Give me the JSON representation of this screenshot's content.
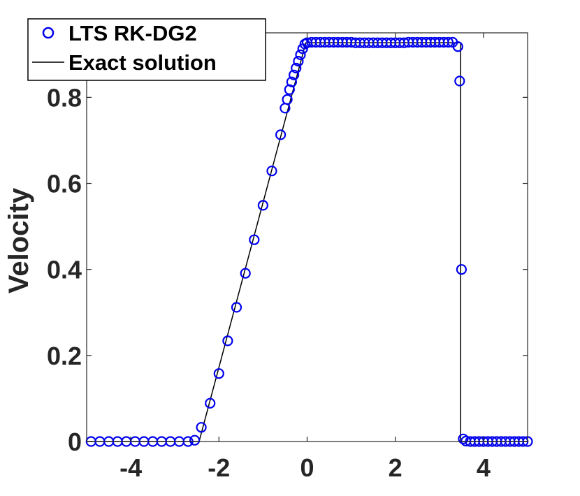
{
  "chart_data": {
    "type": "scatter",
    "title": "",
    "xlabel": "",
    "ylabel": "Velocity",
    "xlim": [
      -5,
      5
    ],
    "ylim": [
      0,
      0.95
    ],
    "x_ticks": [
      -4,
      -2,
      0,
      2,
      4
    ],
    "x_tick_labels": [
      "-4",
      "-2",
      "0",
      "2",
      "4"
    ],
    "y_ticks": [
      0,
      0.2,
      0.4,
      0.6,
      0.8
    ],
    "y_tick_labels": [
      "0",
      "0.2",
      "0.4",
      "0.6",
      "0.8"
    ],
    "grid": false,
    "legend_position": "top-left",
    "series": [
      {
        "name": "LTS RK-DG2",
        "style": "markers",
        "marker": "circle",
        "color": "#0000ee",
        "points": [
          [
            -4.9,
            0
          ],
          [
            -4.7,
            0
          ],
          [
            -4.5,
            0
          ],
          [
            -4.3,
            0
          ],
          [
            -4.1,
            0
          ],
          [
            -3.9,
            0
          ],
          [
            -3.7,
            0
          ],
          [
            -3.5,
            0
          ],
          [
            -3.3,
            0
          ],
          [
            -3.1,
            0
          ],
          [
            -2.9,
            0
          ],
          [
            -2.7,
            0
          ],
          [
            -2.55,
            0.003
          ],
          [
            -2.4,
            0.033
          ],
          [
            -2.2,
            0.089
          ],
          [
            -2.0,
            0.158
          ],
          [
            -1.8,
            0.234
          ],
          [
            -1.6,
            0.312
          ],
          [
            -1.4,
            0.391
          ],
          [
            -1.2,
            0.469
          ],
          [
            -1.0,
            0.549
          ],
          [
            -0.8,
            0.629
          ],
          [
            -0.6,
            0.713
          ],
          [
            -0.5,
            0.775
          ],
          [
            -0.45,
            0.795
          ],
          [
            -0.4,
            0.818
          ],
          [
            -0.35,
            0.836
          ],
          [
            -0.3,
            0.852
          ],
          [
            -0.25,
            0.868
          ],
          [
            -0.2,
            0.884
          ],
          [
            -0.15,
            0.899
          ],
          [
            -0.1,
            0.913
          ],
          [
            -0.05,
            0.924
          ],
          [
            0.0,
            0.927
          ],
          [
            0.1,
            0.928
          ],
          [
            0.2,
            0.928
          ],
          [
            0.3,
            0.928
          ],
          [
            0.4,
            0.928
          ],
          [
            0.5,
            0.928
          ],
          [
            0.6,
            0.928
          ],
          [
            0.7,
            0.928
          ],
          [
            0.8,
            0.928
          ],
          [
            0.9,
            0.928
          ],
          [
            1.0,
            0.928
          ],
          [
            1.1,
            0.927
          ],
          [
            1.2,
            0.927
          ],
          [
            1.3,
            0.927
          ],
          [
            1.4,
            0.927
          ],
          [
            1.5,
            0.927
          ],
          [
            1.6,
            0.927
          ],
          [
            1.7,
            0.927
          ],
          [
            1.8,
            0.927
          ],
          [
            1.9,
            0.927
          ],
          [
            2.0,
            0.927
          ],
          [
            2.1,
            0.927
          ],
          [
            2.2,
            0.927
          ],
          [
            2.3,
            0.928
          ],
          [
            2.4,
            0.928
          ],
          [
            2.5,
            0.928
          ],
          [
            2.6,
            0.928
          ],
          [
            2.7,
            0.928
          ],
          [
            2.8,
            0.928
          ],
          [
            2.9,
            0.928
          ],
          [
            3.0,
            0.928
          ],
          [
            3.1,
            0.928
          ],
          [
            3.2,
            0.928
          ],
          [
            3.3,
            0.928
          ],
          [
            3.42,
            0.918
          ],
          [
            3.46,
            0.838
          ],
          [
            3.5,
            0.4
          ],
          [
            3.54,
            0.006
          ],
          [
            3.6,
            0.001
          ],
          [
            3.7,
            0
          ],
          [
            3.8,
            0
          ],
          [
            3.9,
            0
          ],
          [
            4.0,
            0
          ],
          [
            4.1,
            0
          ],
          [
            4.2,
            0
          ],
          [
            4.3,
            0
          ],
          [
            4.4,
            0
          ],
          [
            4.5,
            0
          ],
          [
            4.6,
            0
          ],
          [
            4.7,
            0
          ],
          [
            4.8,
            0
          ],
          [
            4.9,
            0
          ],
          [
            5.0,
            0
          ]
        ]
      },
      {
        "name": "Exact solution",
        "style": "line",
        "color": "#000000",
        "points": [
          [
            -5.0,
            0
          ],
          [
            -2.45,
            0
          ],
          [
            -0.03,
            0.927
          ],
          [
            3.48,
            0.927
          ],
          [
            3.48,
            0
          ],
          [
            5.0,
            0
          ]
        ]
      }
    ]
  }
}
